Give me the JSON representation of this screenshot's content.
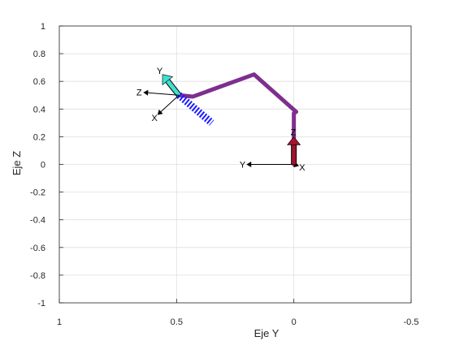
{
  "chart_data": {
    "type": "line",
    "xlabel": "Eje Y",
    "ylabel": "Eje Z",
    "xlim": [
      1,
      -0.5
    ],
    "ylim": [
      -1,
      1
    ],
    "x_reversed": true,
    "grid": true,
    "x_ticks": [
      1,
      0.5,
      0,
      -0.5
    ],
    "x_tick_labels": [
      "1",
      "0.5",
      "0",
      "-0.5"
    ],
    "y_ticks": [
      1,
      0.8,
      0.6,
      0.4,
      0.2,
      0,
      -0.2,
      -0.4,
      -0.6,
      -0.8,
      -1
    ],
    "y_tick_labels": [
      "1",
      "0.8",
      "0.6",
      "0.4",
      "0.2",
      "0",
      "-0.2",
      "-0.4",
      "-0.6",
      "-0.8",
      "-1"
    ],
    "series": [
      {
        "type": "line",
        "color": "#7e2f8e",
        "points": [
          [
            0,
            0
          ],
          [
            0,
            0.17
          ],
          [
            0,
            0.37
          ],
          [
            -0.01,
            0.38
          ],
          [
            0.17,
            0.65
          ],
          [
            0.43,
            0.49
          ],
          [
            0.49,
            0.5
          ]
        ]
      },
      {
        "type": "line",
        "color": "#1a1aff",
        "points": [
          [
            0.49,
            0.5
          ],
          [
            0.35,
            0.3
          ]
        ]
      }
    ],
    "frames": [
      {
        "origin": [
          0,
          0
        ],
        "axes": [
          {
            "label": "X",
            "end": [
              -0.02,
              -0.01
            ],
            "color": "#000000"
          },
          {
            "label": "Y",
            "end": [
              0.2,
              0
            ],
            "color": "#000000"
          },
          {
            "label": "Z",
            "end": [
              0,
              0.2
            ],
            "color": "#a2142f"
          }
        ]
      },
      {
        "origin": [
          0.49,
          0.5
        ],
        "axes": [
          {
            "label": "X",
            "end": [
              0.58,
              0.36
            ],
            "color": "#000000"
          },
          {
            "label": "Y",
            "end": [
              0.56,
              0.65
            ],
            "color": "#40e0d0"
          },
          {
            "label": "Z",
            "end": [
              0.64,
              0.52
            ],
            "color": "#000000"
          }
        ]
      }
    ]
  }
}
